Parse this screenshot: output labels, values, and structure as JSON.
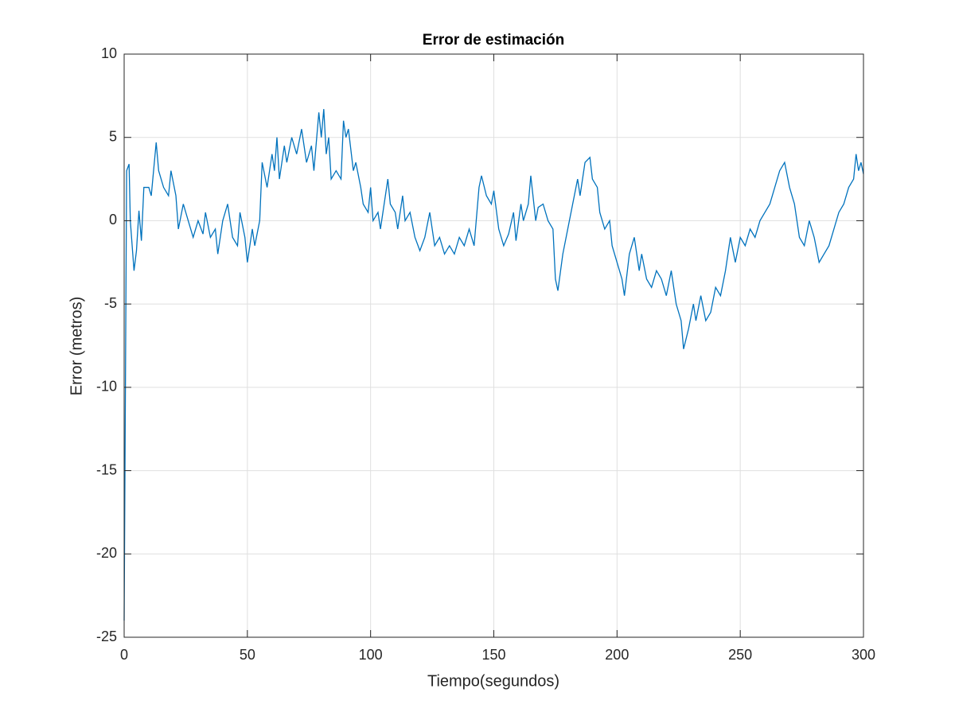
{
  "chart_data": {
    "type": "line",
    "title": "Error de estimación",
    "x_label": "Tiempo(segundos)",
    "y_label": "Error (metros)",
    "xlim": [
      0,
      300
    ],
    "ylim": [
      -25,
      10
    ],
    "xticks": [
      0,
      50,
      100,
      150,
      200,
      250,
      300
    ],
    "yticks": [
      -25,
      -20,
      -15,
      -10,
      -5,
      0,
      5,
      10
    ],
    "grid": true,
    "series": [
      {
        "color": "#0072bd",
        "x": [
          0,
          1,
          2,
          2.5,
          4,
          5,
          6,
          7,
          8,
          10,
          11,
          13,
          14,
          16,
          18,
          19,
          21,
          22,
          24,
          26,
          28,
          30,
          32,
          33,
          35,
          37,
          38,
          40,
          42,
          44,
          46,
          47,
          49,
          50,
          52,
          53,
          55,
          56,
          58,
          60,
          61,
          62,
          63,
          65,
          66,
          68,
          70,
          72,
          74,
          76,
          77,
          79,
          80,
          81,
          82,
          83,
          84,
          86,
          88,
          89,
          90,
          91,
          93,
          94,
          96,
          97,
          99,
          100,
          101,
          103,
          104,
          106,
          107,
          108,
          110,
          111,
          113,
          114,
          116,
          118,
          120,
          122,
          124,
          126,
          128,
          130,
          132,
          134,
          136,
          138,
          140,
          142,
          144,
          145,
          147,
          149,
          150,
          152,
          154,
          156,
          158,
          159,
          161,
          162,
          164,
          165,
          167,
          168,
          170,
          172,
          174,
          175,
          176,
          178,
          180,
          182,
          184,
          185,
          187,
          189,
          190,
          192,
          193,
          195,
          197,
          198,
          200,
          202,
          203,
          205,
          207,
          209,
          210,
          212,
          214,
          216,
          218,
          220,
          222,
          224,
          226,
          227,
          229,
          231,
          232,
          234,
          236,
          238,
          240,
          242,
          244,
          246,
          248,
          250,
          252,
          254,
          256,
          258,
          260,
          262,
          264,
          266,
          268,
          270,
          272,
          274,
          276,
          278,
          280,
          282,
          284,
          286,
          288,
          290,
          292,
          294,
          296,
          297,
          298,
          299,
          300
        ],
        "values": [
          -24,
          3,
          3.4,
          0,
          -3,
          -1.8,
          0.6,
          -1.2,
          2,
          2,
          1.5,
          4.7,
          3,
          2,
          1.5,
          3,
          1.5,
          -0.5,
          1,
          0,
          -1,
          0,
          -0.8,
          0.5,
          -1,
          -0.5,
          -2,
          0,
          1,
          -1,
          -1.5,
          0.5,
          -1,
          -2.5,
          -0.5,
          -1.5,
          0,
          3.5,
          2,
          4,
          3,
          5,
          2.5,
          4.5,
          3.5,
          5,
          4,
          5.5,
          3.5,
          4.5,
          3,
          6.5,
          5,
          6.7,
          4,
          5,
          2.5,
          3,
          2.5,
          6,
          5,
          5.5,
          3,
          3.5,
          2,
          1,
          0.5,
          2,
          0,
          0.5,
          -0.5,
          1.5,
          2.5,
          1,
          0.5,
          -0.5,
          1.5,
          0,
          0.5,
          -1,
          -1.8,
          -1,
          0.5,
          -1.5,
          -1,
          -2,
          -1.5,
          -2,
          -1,
          -1.5,
          -0.5,
          -1.5,
          2,
          2.7,
          1.5,
          1,
          1.8,
          -0.5,
          -1.5,
          -0.8,
          0.5,
          -1.2,
          1,
          0,
          1,
          2.7,
          0,
          0.8,
          1,
          0,
          -0.5,
          -3.5,
          -4.2,
          -2,
          -0.5,
          1,
          2.5,
          1.5,
          3.5,
          3.8,
          2.5,
          2,
          0.5,
          -0.5,
          0,
          -1.5,
          -2.5,
          -3.5,
          -4.5,
          -2,
          -1,
          -3,
          -2,
          -3.5,
          -4,
          -3,
          -3.5,
          -4.5,
          -3,
          -5,
          -6,
          -7.7,
          -6.5,
          -5,
          -6,
          -4.5,
          -6,
          -5.5,
          -4,
          -4.5,
          -3,
          -1,
          -2.5,
          -1,
          -1.5,
          -0.5,
          -1,
          0,
          0.5,
          1,
          2,
          3,
          3.5,
          2,
          1,
          -1,
          -1.5,
          0,
          -1,
          -2.5,
          -2,
          -1.5,
          -0.5,
          0.5,
          1,
          2,
          2.5,
          4,
          3,
          3.5,
          2.8
        ]
      }
    ]
  }
}
